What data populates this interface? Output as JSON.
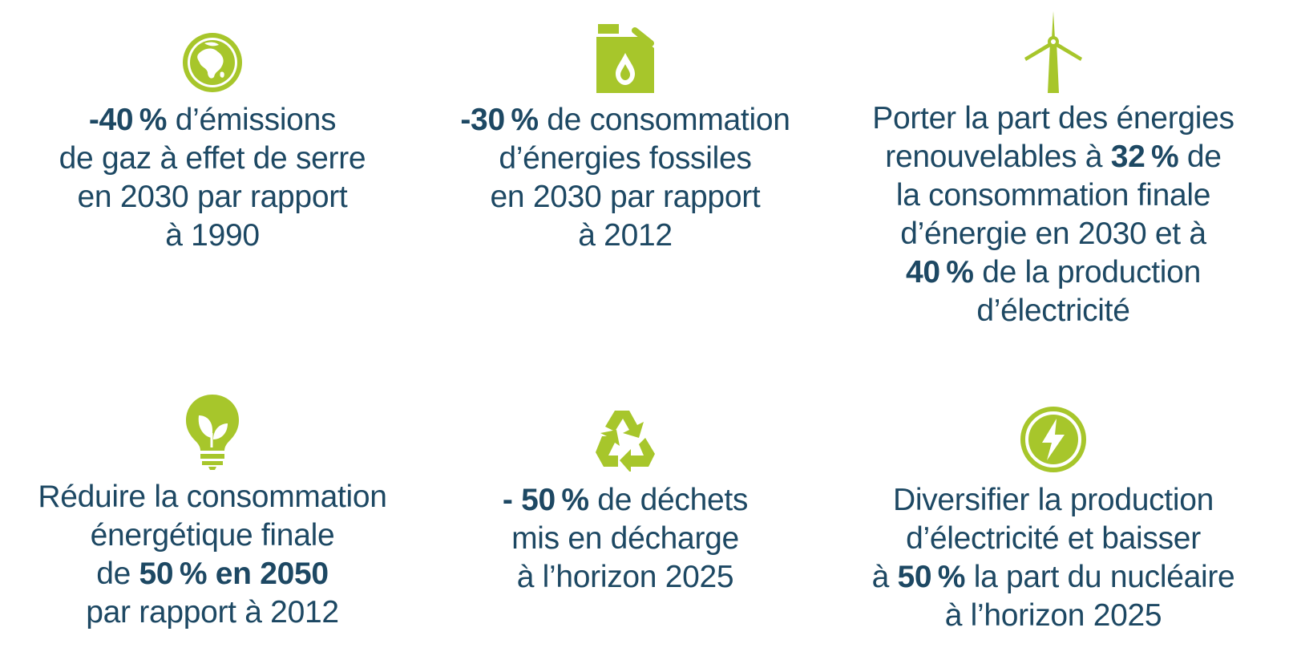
{
  "colors": {
    "text": "#1d4863",
    "accent": "#a7c62b"
  },
  "items": [
    {
      "icon": "globe-icon",
      "lines": [
        [
          {
            "b": true,
            "t": "-40 %"
          },
          {
            "t": " d’émissions"
          }
        ],
        [
          {
            "t": "de gaz à effet de serre"
          }
        ],
        [
          {
            "t": "en 2030 par rapport"
          }
        ],
        [
          {
            "t": "à 1990"
          }
        ]
      ]
    },
    {
      "icon": "fuel-can-icon",
      "lines": [
        [
          {
            "b": true,
            "t": "-30 %"
          },
          {
            "t": " de consommation"
          }
        ],
        [
          {
            "t": "d’énergies fossiles"
          }
        ],
        [
          {
            "t": "en 2030 par rapport"
          }
        ],
        [
          {
            "t": "à 2012"
          }
        ]
      ]
    },
    {
      "icon": "wind-turbine-icon",
      "lines": [
        [
          {
            "t": "Porter la part des énergies"
          }
        ],
        [
          {
            "t": "renouvelables à "
          },
          {
            "b": true,
            "t": "32 %"
          },
          {
            "t": " de"
          }
        ],
        [
          {
            "t": "la consommation finale"
          }
        ],
        [
          {
            "t": "d’énergie en 2030 et à"
          }
        ],
        [
          {
            "b": true,
            "t": "40 %"
          },
          {
            "t": " de la production"
          }
        ],
        [
          {
            "t": "d’électricité"
          }
        ]
      ]
    },
    {
      "icon": "eco-bulb-icon",
      "lines": [
        [
          {
            "t": "Réduire la consommation"
          }
        ],
        [
          {
            "t": "énergétique finale"
          }
        ],
        [
          {
            "t": "de "
          },
          {
            "b": true,
            "t": "50 % en 2050"
          }
        ],
        [
          {
            "t": "par rapport à 2012"
          }
        ]
      ]
    },
    {
      "icon": "recycle-icon",
      "lines": [
        [
          {
            "b": true,
            "t": "- 50 %"
          },
          {
            "t": " de déchets"
          }
        ],
        [
          {
            "t": "mis en décharge"
          }
        ],
        [
          {
            "t": "à l’horizon 2025"
          }
        ]
      ]
    },
    {
      "icon": "lightning-bolt-icon",
      "lines": [
        [
          {
            "t": "Diversifier la production"
          }
        ],
        [
          {
            "t": "d’électricité et baisser"
          }
        ],
        [
          {
            "t": "à "
          },
          {
            "b": true,
            "t": "50 %"
          },
          {
            "t": " la part du nucléaire"
          }
        ],
        [
          {
            "t": "à l’horizon 2025"
          }
        ]
      ]
    }
  ]
}
